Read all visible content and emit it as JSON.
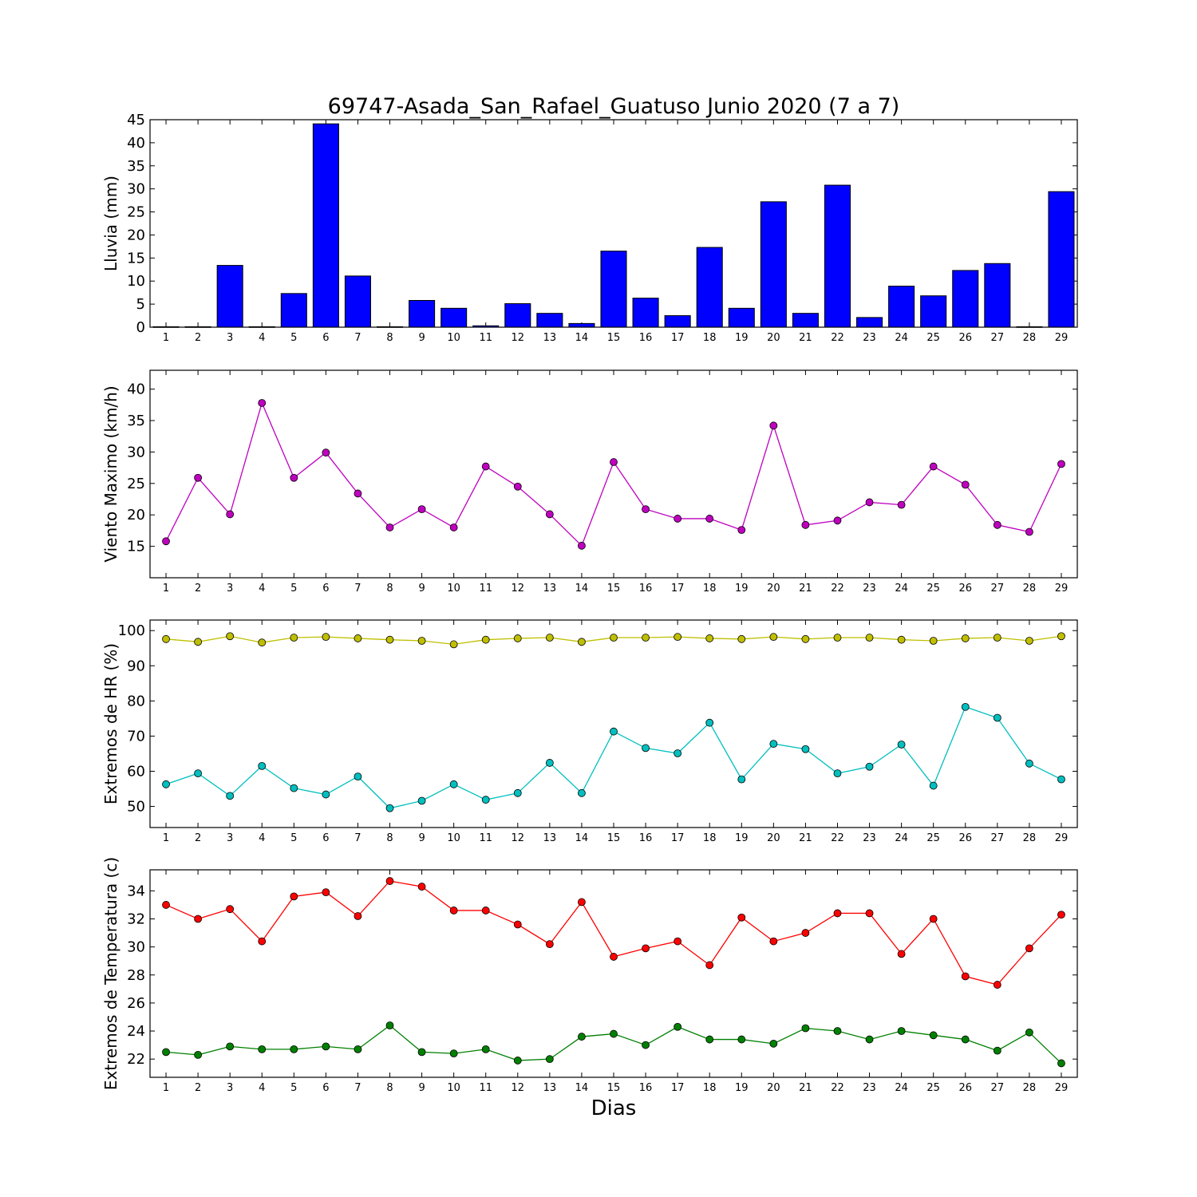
{
  "figure": {
    "title": "69747-Asada_San_Rafael_Guatuso Junio 2020  (7 a 7)",
    "xlabel": "Dias"
  },
  "chart_data": [
    {
      "type": "bar",
      "ylabel": "Lluvia (mm)",
      "ylim": [
        0,
        45
      ],
      "yticks": [
        0,
        5,
        10,
        15,
        20,
        25,
        30,
        35,
        40,
        45
      ],
      "categories": [
        "1",
        "2",
        "3",
        "4",
        "5",
        "6",
        "7",
        "8",
        "9",
        "10",
        "11",
        "12",
        "13",
        "14",
        "15",
        "16",
        "17",
        "18",
        "19",
        "20",
        "21",
        "22",
        "23",
        "24",
        "25",
        "26",
        "27",
        "28",
        "29"
      ],
      "series": [
        {
          "color": "#0000ff",
          "values": [
            0.1,
            0.1,
            13.4,
            0.1,
            7.3,
            44.1,
            11.1,
            0.1,
            5.8,
            4.1,
            0.3,
            5.1,
            3.0,
            0.8,
            16.5,
            6.3,
            2.5,
            17.3,
            4.1,
            27.2,
            3.0,
            30.8,
            2.1,
            8.9,
            6.8,
            12.3,
            13.8,
            0.1,
            29.4
          ]
        }
      ]
    },
    {
      "type": "line",
      "ylabel": "Viento Maximo (km/h)",
      "ylim": [
        10,
        43
      ],
      "yticks": [
        15,
        20,
        25,
        30,
        35,
        40
      ],
      "categories": [
        "1",
        "2",
        "3",
        "4",
        "5",
        "6",
        "7",
        "8",
        "9",
        "10",
        "11",
        "12",
        "13",
        "14",
        "15",
        "16",
        "17",
        "18",
        "19",
        "20",
        "21",
        "22",
        "23",
        "24",
        "25",
        "26",
        "27",
        "28",
        "29"
      ],
      "series": [
        {
          "color": "#bf00bf",
          "values": [
            15.8,
            25.9,
            20.1,
            37.8,
            25.9,
            29.9,
            23.4,
            18.0,
            20.9,
            18.0,
            27.7,
            24.5,
            20.1,
            15.1,
            28.4,
            20.9,
            19.4,
            19.4,
            17.6,
            34.2,
            18.4,
            19.1,
            22.0,
            21.6,
            27.7,
            24.8,
            18.4,
            17.3,
            28.1
          ]
        }
      ]
    },
    {
      "type": "line",
      "ylabel": "Extremos de HR (%)",
      "ylim": [
        44,
        103
      ],
      "yticks": [
        50,
        60,
        70,
        80,
        90,
        100
      ],
      "categories": [
        "1",
        "2",
        "3",
        "4",
        "5",
        "6",
        "7",
        "8",
        "9",
        "10",
        "11",
        "12",
        "13",
        "14",
        "15",
        "16",
        "17",
        "18",
        "19",
        "20",
        "21",
        "22",
        "23",
        "24",
        "25",
        "26",
        "27",
        "28",
        "29"
      ],
      "series": [
        {
          "color": "#bfbf00",
          "values": [
            97.6,
            96.8,
            98.4,
            96.6,
            98.0,
            98.2,
            97.8,
            97.4,
            97.1,
            96.1,
            97.4,
            97.8,
            98.0,
            96.8,
            98.0,
            98.0,
            98.2,
            97.8,
            97.6,
            98.2,
            97.6,
            98.0,
            98.0,
            97.4,
            97.1,
            97.8,
            98.0,
            97.1,
            98.4
          ]
        },
        {
          "color": "#00bfbf",
          "values": [
            56.3,
            59.4,
            53.0,
            61.5,
            55.2,
            53.4,
            58.5,
            49.5,
            51.6,
            56.3,
            51.9,
            53.8,
            62.4,
            53.8,
            71.3,
            66.6,
            65.1,
            73.8,
            57.7,
            67.8,
            66.3,
            59.4,
            61.3,
            67.6,
            55.9,
            78.3,
            75.2,
            62.2,
            57.7
          ]
        }
      ]
    },
    {
      "type": "line",
      "ylabel": "Extremos de Temperatura (c)",
      "ylim": [
        20.7,
        35.5
      ],
      "yticks": [
        22,
        24,
        26,
        28,
        30,
        32,
        34
      ],
      "categories": [
        "1",
        "2",
        "3",
        "4",
        "5",
        "6",
        "7",
        "8",
        "9",
        "10",
        "11",
        "12",
        "13",
        "14",
        "15",
        "16",
        "17",
        "18",
        "19",
        "20",
        "21",
        "22",
        "23",
        "24",
        "25",
        "26",
        "27",
        "28",
        "29"
      ],
      "series": [
        {
          "color": "#ff0000",
          "values": [
            33.0,
            32.0,
            32.7,
            30.4,
            33.6,
            33.9,
            32.2,
            34.7,
            34.3,
            32.6,
            32.6,
            31.6,
            30.2,
            33.2,
            29.3,
            29.9,
            30.4,
            28.7,
            32.1,
            30.4,
            31.0,
            32.4,
            32.4,
            29.5,
            32.0,
            27.9,
            27.3,
            29.9,
            32.3
          ]
        },
        {
          "color": "#008000",
          "values": [
            22.5,
            22.3,
            22.9,
            22.7,
            22.7,
            22.9,
            22.7,
            24.4,
            22.5,
            22.4,
            22.7,
            21.9,
            22.0,
            23.6,
            23.8,
            23.0,
            24.3,
            23.4,
            23.4,
            23.1,
            24.2,
            24.0,
            23.4,
            24.0,
            23.7,
            23.4,
            22.6,
            23.9,
            21.7
          ]
        }
      ]
    }
  ]
}
